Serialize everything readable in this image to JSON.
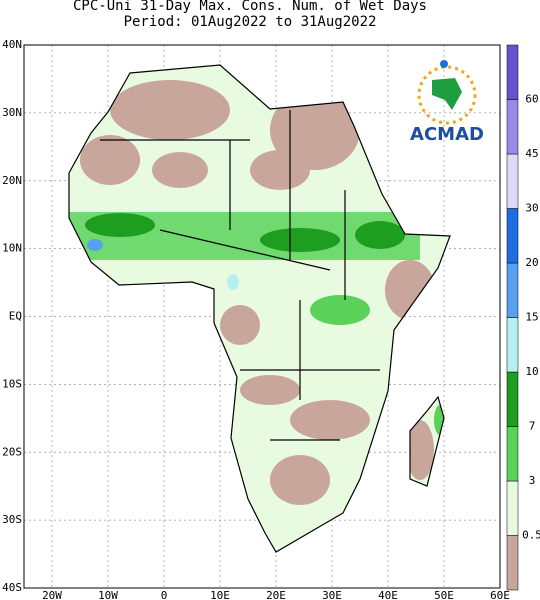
{
  "title": {
    "line1": "CPC-Uni 31-Day Max. Cons. Num. of Wet Days",
    "line2": "Period: 01Aug2022 to 31Aug2022"
  },
  "map": {
    "lat_labels": [
      "40N",
      "30N",
      "20N",
      "10N",
      "EQ",
      "10S",
      "20S",
      "30S",
      "40S"
    ],
    "lon_labels": [
      "20W",
      "10W",
      "0",
      "10E",
      "20E",
      "30E",
      "40E",
      "50E",
      "60E"
    ]
  },
  "legend": {
    "colors": [
      "#c9a69b",
      "#e8fae0",
      "#5ad25a",
      "#1e9e1e",
      "#b4f0f0",
      "#5aa0f0",
      "#1e6ee0",
      "#dcdcf8",
      "#9a8ae8",
      "#6a50d0"
    ],
    "labels": [
      "0.5",
      "3",
      "7",
      "10",
      "15",
      "20",
      "30",
      "45",
      "60"
    ]
  },
  "logo": {
    "text": "ACMAD"
  }
}
